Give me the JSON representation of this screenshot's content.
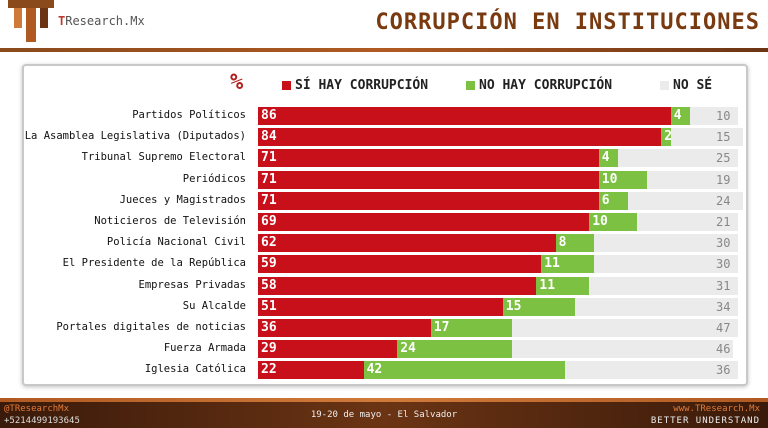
{
  "header": {
    "brand_prefix": "T",
    "brand_rest": "Research.Mx",
    "title": "CORRUPCIÓN EN INSTITUCIONES"
  },
  "legend": {
    "percent_symbol": "%",
    "yes": "SÍ HAY CORRUPCIÓN",
    "no": "NO HAY CORRUPCIÓN",
    "unknown": "NO SÉ"
  },
  "colors": {
    "yes": "#c8101a",
    "no": "#7cc142",
    "unknown": "#ebebeb",
    "accent": "#b22222"
  },
  "chart_data": {
    "type": "bar",
    "orientation": "horizontal",
    "stacked": true,
    "title": "CORRUPCIÓN EN INSTITUCIONES",
    "unit": "%",
    "xlim": [
      0,
      100
    ],
    "categories": [
      "Partidos Políticos",
      "La Asamblea Legislativa (Diputados)",
      "Tribunal Supremo Electoral",
      "Periódicos",
      "Jueces y Magistrados",
      "Noticieros de Televisión",
      "Policía Nacional Civil",
      "El Presidente de la República",
      "Empresas Privadas",
      "Su Alcalde",
      "Portales digitales de noticias",
      "Fuerza Armada",
      "Iglesia Católica"
    ],
    "series": [
      {
        "name": "SÍ HAY CORRUPCIÓN",
        "values": [
          86,
          84,
          71,
          71,
          71,
          69,
          62,
          59,
          58,
          51,
          36,
          29,
          22
        ]
      },
      {
        "name": "NO HAY CORRUPCIÓN",
        "values": [
          4,
          2,
          4,
          10,
          6,
          10,
          8,
          11,
          11,
          15,
          17,
          24,
          42
        ]
      },
      {
        "name": "NO SÉ",
        "values": [
          10,
          15,
          25,
          19,
          24,
          21,
          30,
          30,
          31,
          34,
          47,
          46,
          36
        ]
      }
    ]
  },
  "footer": {
    "handle": "@TResearchMx",
    "phone": "+5214499193645",
    "center": "19-20 de mayo - El Salvador",
    "web": "www.TResearch.Mx",
    "tagline": "BETTER UNDERSTAND"
  }
}
